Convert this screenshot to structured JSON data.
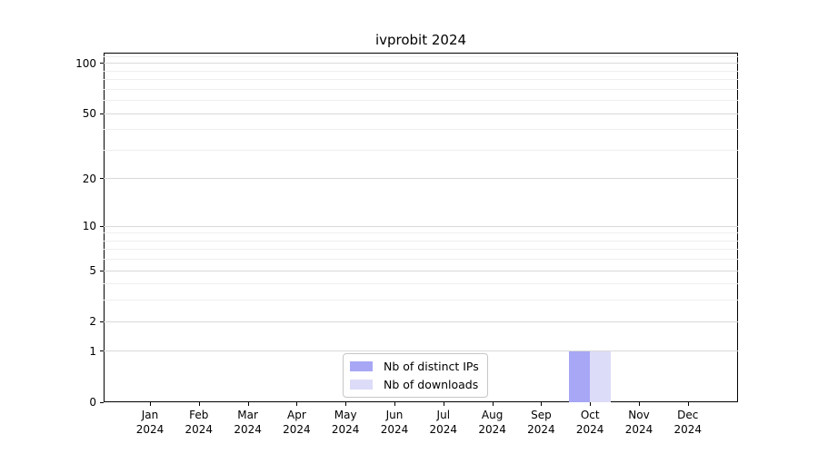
{
  "chart_data": {
    "type": "bar",
    "title": "ivprobit 2024",
    "year_label": "2024",
    "months": [
      "Jan",
      "Feb",
      "Mar",
      "Apr",
      "May",
      "Jun",
      "Jul",
      "Aug",
      "Sep",
      "Oct",
      "Nov",
      "Dec"
    ],
    "series": [
      {
        "name": "Nb of distinct IPs",
        "color": "#a7a7f5",
        "values": [
          0,
          0,
          0,
          0,
          0,
          0,
          0,
          0,
          0,
          1,
          0,
          0
        ]
      },
      {
        "name": "Nb of downloads",
        "color": "#dcdcf8",
        "values": [
          0,
          0,
          0,
          0,
          0,
          0,
          0,
          0,
          0,
          1,
          0,
          0
        ]
      }
    ],
    "y_axis": {
      "scale": "log1p",
      "major_ticks": [
        0,
        1,
        2,
        5,
        10,
        20,
        50,
        100
      ],
      "minor_ticks": [
        3,
        4,
        6,
        7,
        8,
        9,
        30,
        40,
        60,
        70,
        80,
        90,
        110
      ],
      "range": [
        0,
        116
      ]
    },
    "grid": "horizontal",
    "legend_position": "lower center",
    "colors": {
      "major_grid": "#d9d9d9",
      "minor_grid": "#efefef",
      "axis": "#000000",
      "background": "#ffffff"
    }
  }
}
